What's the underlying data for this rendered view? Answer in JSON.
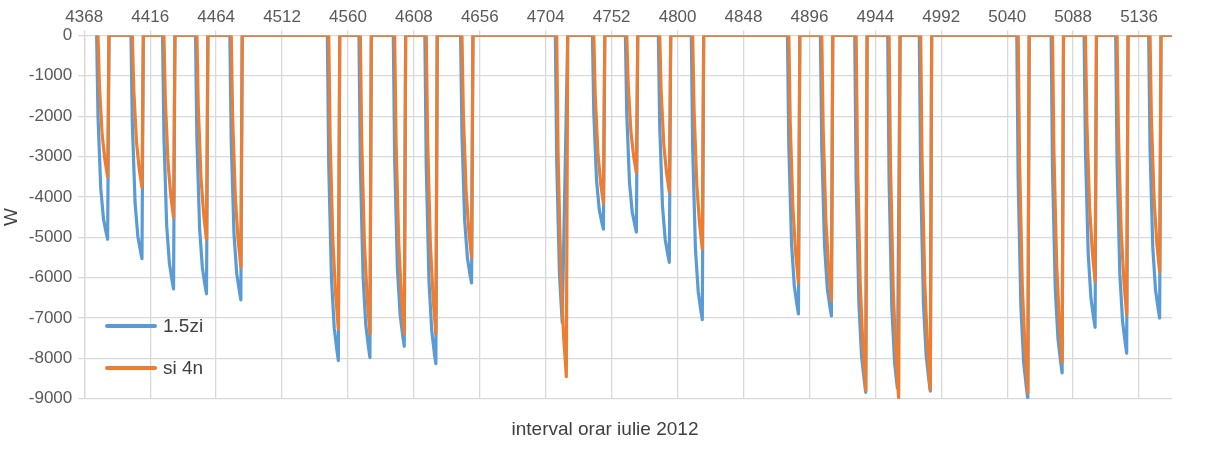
{
  "chart_data": {
    "type": "line",
    "xlabel": "interval orar iulie 2012",
    "ylabel": "W",
    "xlim": [
      4368,
      5160
    ],
    "xticks": [
      4368,
      4416,
      4464,
      4512,
      4560,
      4608,
      4656,
      4704,
      4752,
      4800,
      4848,
      4896,
      4944,
      4992,
      5040,
      5088,
      5136
    ],
    "ylim": [
      -9000,
      0
    ],
    "yticks": [
      -9000,
      -8000,
      -7000,
      -6000,
      -5000,
      -4000,
      -3000,
      -2000,
      -1000,
      0
    ],
    "grid": true,
    "legend": "bottom left",
    "marker": "none",
    "line_style": "solid",
    "series": [
      {
        "name": "1.5zi",
        "color": "#5b9bd5",
        "x": [
          4377,
          4378,
          4380,
          4382,
          4384,
          4385,
          4386,
          4402,
          4403,
          4405,
          4407,
          4409,
          4410,
          4411,
          4425,
          4426,
          4428,
          4430,
          4432,
          4433,
          4434,
          4449,
          4450,
          4452,
          4454,
          4456,
          4457,
          4458,
          4474,
          4475,
          4477,
          4479,
          4481,
          4482,
          4483,
          4545,
          4546,
          4548,
          4550,
          4552,
          4553,
          4554,
          4568,
          4569,
          4571,
          4573,
          4575,
          4576,
          4577,
          4593,
          4594,
          4596,
          4598,
          4600,
          4601,
          4602,
          4616,
          4617,
          4619,
          4621,
          4623,
          4624,
          4625,
          4642,
          4643,
          4645,
          4647,
          4649,
          4650,
          4651,
          4711,
          4712,
          4714,
          4716,
          4718,
          4719,
          4720,
          4738,
          4739,
          4741,
          4743,
          4745,
          4746,
          4747,
          4762,
          4763,
          4765,
          4767,
          4769,
          4770,
          4771,
          4786,
          4787,
          4789,
          4791,
          4793,
          4794,
          4795,
          4810,
          4811,
          4813,
          4815,
          4817,
          4818,
          4819,
          4880,
          4881,
          4883,
          4885,
          4887,
          4888,
          4889,
          4904,
          4905,
          4907,
          4909,
          4911,
          4912,
          4913,
          4929,
          4930,
          4932,
          4934,
          4936,
          4937,
          4938,
          4953,
          4954,
          4956,
          4958,
          4960,
          4961,
          4962,
          4976,
          4977,
          4979,
          4981,
          4983,
          4984,
          4985,
          5047,
          5048,
          5050,
          5052,
          5054,
          5055,
          5056,
          5072,
          5073,
          5075,
          5077,
          5079,
          5080,
          5081,
          5096,
          5097,
          5099,
          5101,
          5103,
          5104,
          5105,
          5119,
          5120,
          5122,
          5124,
          5126,
          5127,
          5128,
          5143,
          5144,
          5146,
          5148,
          5150,
          5151,
          5152,
          5160
        ],
        "values": [
          0,
          -2020,
          -3790,
          -4550,
          -4900,
          -5050,
          0,
          0,
          -2210,
          -4150,
          -4980,
          -5360,
          -5530,
          0,
          0,
          -2510,
          -4710,
          -5650,
          -6090,
          -6280,
          0,
          0,
          -2560,
          -4800,
          -5760,
          -6210,
          -6400,
          0,
          0,
          -2620,
          -4910,
          -5900,
          -6350,
          -6550,
          0,
          0,
          -3220,
          -6040,
          -7250,
          -7810,
          -8050,
          0,
          0,
          -3190,
          -5990,
          -7180,
          -7740,
          -7980,
          0,
          0,
          -3080,
          -5780,
          -6930,
          -7470,
          -7700,
          0,
          0,
          -3250,
          -6100,
          -7320,
          -7890,
          -8130,
          0,
          0,
          -2450,
          -4600,
          -5520,
          -5950,
          -6130,
          0,
          0,
          -3160,
          -5930,
          -7110,
          null,
          null,
          0,
          0,
          -1920,
          -3600,
          -4320,
          -4660,
          -4800,
          0,
          0,
          -1950,
          -3650,
          -4380,
          -4720,
          -4870,
          0,
          0,
          -2250,
          -4220,
          -5060,
          -5450,
          -5620,
          0,
          0,
          -2820,
          -5280,
          -6340,
          -6830,
          -7040,
          0,
          0,
          -2760,
          -5180,
          -6210,
          -6690,
          -6900,
          0,
          0,
          -2780,
          -5210,
          -6260,
          -6740,
          -6950,
          0,
          0,
          -3540,
          -6630,
          -7960,
          -8570,
          -8840,
          0,
          0,
          -3600,
          -6750,
          -8100,
          -8730,
          null,
          0,
          0,
          -3520,
          -6610,
          -7930,
          -8550,
          -8810,
          0,
          0,
          -3600,
          -6750,
          -8100,
          -8730,
          -9000,
          0,
          0,
          -3340,
          -6270,
          -7520,
          -8110,
          -8360,
          0,
          0,
          -2890,
          -5420,
          -6510,
          -7010,
          -7230,
          0,
          0,
          -3150,
          -5900,
          -7080,
          -7630,
          -7870,
          0,
          0,
          -2800,
          -5250,
          -6300,
          -6790,
          -7000,
          0,
          0
        ]
      },
      {
        "name": "si 4n",
        "color": "#ed7d31",
        "x": [
          4378,
          4379,
          4381,
          4383,
          4385,
          4386,
          4403,
          4404,
          4406,
          4408,
          4410,
          4411,
          4426,
          4427,
          4429,
          4431,
          4433,
          4434,
          4450,
          4451,
          4453,
          4455,
          4457,
          4458,
          4475,
          4476,
          4478,
          4480,
          4482,
          4483,
          4546,
          4547,
          4549,
          4551,
          4553,
          4554,
          4569,
          4570,
          4572,
          4574,
          4576,
          4577,
          4594,
          4595,
          4597,
          4599,
          4601,
          4602,
          4617,
          4618,
          4620,
          4622,
          4624,
          4625,
          4643,
          4644,
          4646,
          4648,
          4650,
          4651,
          4712,
          4713,
          4715,
          4717,
          4719,
          4720,
          4739,
          4740,
          4742,
          4744,
          4746,
          4747,
          4763,
          4764,
          4766,
          4768,
          4770,
          4771,
          4787,
          4788,
          4790,
          4792,
          4794,
          4795,
          4811,
          4812,
          4814,
          4816,
          4818,
          4819,
          4881,
          4882,
          4884,
          4886,
          4888,
          4889,
          4905,
          4906,
          4908,
          4910,
          4912,
          4913,
          4930,
          4931,
          4933,
          4935,
          4937,
          4938,
          4954,
          4955,
          4957,
          4959,
          4961,
          4962,
          4977,
          4978,
          4980,
          4982,
          4984,
          4985,
          5048,
          5049,
          5051,
          5053,
          5055,
          5056,
          5073,
          5074,
          5076,
          5078,
          5080,
          5081,
          5097,
          5098,
          5100,
          5102,
          5104,
          5105,
          5120,
          5121,
          5123,
          5125,
          5127,
          5128,
          5144,
          5145,
          5147,
          5149,
          5151,
          5152,
          5160
        ],
        "values": [
          0,
          -1230,
          -2450,
          -3080,
          -3500,
          0,
          0,
          -1320,
          -2630,
          -3310,
          -3760,
          0,
          0,
          -1580,
          -3160,
          -3970,
          -4510,
          0,
          0,
          -1770,
          -3540,
          -4450,
          -5060,
          0,
          0,
          -2010,
          -4020,
          -5050,
          -5740,
          0,
          0,
          -2540,
          -5090,
          -6400,
          -7270,
          0,
          0,
          -2590,
          -5170,
          -6500,
          -7390,
          0,
          0,
          -2590,
          -5170,
          -6500,
          -7390,
          0,
          0,
          -2590,
          -5170,
          -6500,
          -7390,
          0,
          0,
          -1930,
          -3850,
          -4840,
          -5500,
          0,
          0,
          -2960,
          -5920,
          -7440,
          -8450,
          0,
          0,
          -1460,
          -2910,
          -3660,
          -4160,
          0,
          0,
          -1190,
          -2380,
          -2990,
          -3400,
          0,
          0,
          -1360,
          -2720,
          -3410,
          -3880,
          0,
          0,
          -1850,
          -3700,
          -4660,
          -5290,
          0,
          0,
          -2150,
          -4290,
          -5390,
          -6130,
          0,
          0,
          -2300,
          -4600,
          -5780,
          -6570,
          0,
          0,
          -3080,
          -6160,
          -7740,
          -8800,
          0,
          0,
          -3150,
          -6300,
          -7920,
          -9000,
          0,
          0,
          -3070,
          -6150,
          -7730,
          -8780,
          0,
          0,
          -3100,
          -6200,
          -7790,
          -8850,
          0,
          0,
          -2840,
          -5670,
          -7130,
          -8100,
          0,
          0,
          -2130,
          -4260,
          -5360,
          -6090,
          0,
          0,
          -2420,
          -4840,
          -6090,
          -6920,
          0,
          0,
          -2050,
          -4100,
          -5160,
          -5860,
          0,
          0
        ]
      }
    ]
  }
}
